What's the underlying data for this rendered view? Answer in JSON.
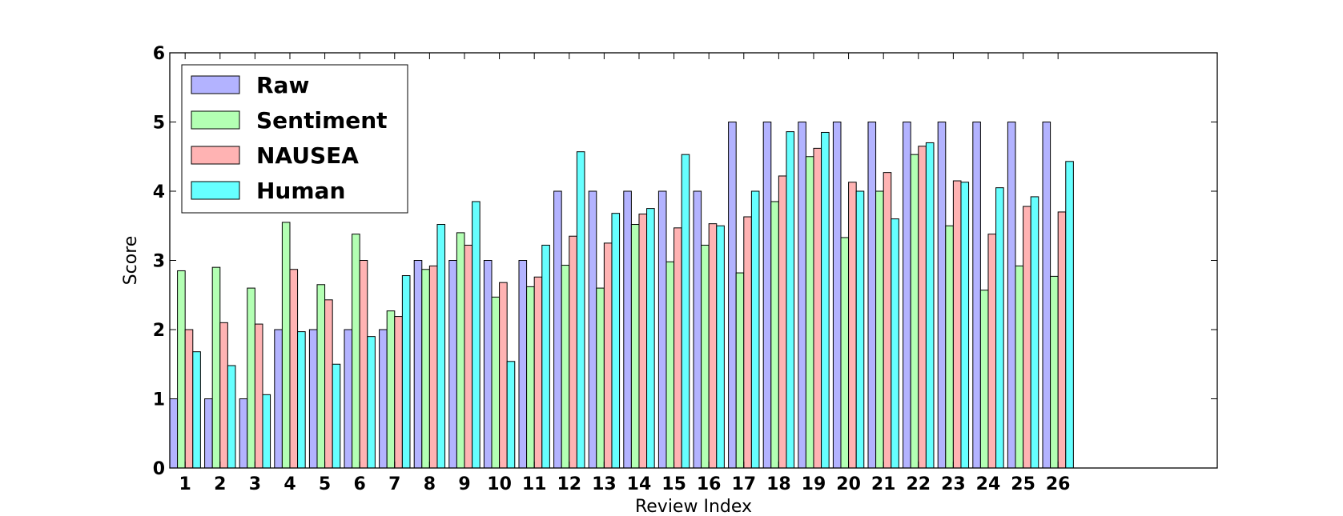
{
  "chart_data": {
    "type": "bar",
    "xlabel": "Review Index",
    "ylabel": "Score",
    "ylim": [
      0,
      6
    ],
    "yticks": [
      0,
      1,
      2,
      3,
      4,
      5,
      6
    ],
    "xlim": [
      0,
      30
    ],
    "categories": [
      "1",
      "2",
      "3",
      "4",
      "5",
      "6",
      "7",
      "8",
      "9",
      "10",
      "11",
      "12",
      "13",
      "14",
      "15",
      "16",
      "17",
      "18",
      "19",
      "20",
      "21",
      "22",
      "23",
      "24",
      "25",
      "26"
    ],
    "legend": {
      "position": "upper-left"
    },
    "series": [
      {
        "name": "Raw",
        "color": "#b3b3ff",
        "values": [
          1,
          1,
          1,
          2,
          2,
          2,
          2,
          3,
          3,
          3,
          3,
          4,
          4,
          4,
          4,
          4,
          5,
          5,
          5,
          5,
          5,
          5,
          5,
          5,
          5,
          5
        ]
      },
      {
        "name": "Sentiment",
        "color": "#b3ffb3",
        "values": [
          2.85,
          2.9,
          2.6,
          3.55,
          2.65,
          3.38,
          2.27,
          2.87,
          3.4,
          2.47,
          2.62,
          2.93,
          2.6,
          3.52,
          2.98,
          3.22,
          2.82,
          3.85,
          4.5,
          3.33,
          4.0,
          4.53,
          3.5,
          2.57,
          2.92,
          2.77
        ]
      },
      {
        "name": "NAUSEA",
        "color": "#ffb3b3",
        "values": [
          2.0,
          2.1,
          2.08,
          2.87,
          2.43,
          3.0,
          2.19,
          2.92,
          3.22,
          2.68,
          2.76,
          3.35,
          3.25,
          3.67,
          3.47,
          3.53,
          3.63,
          4.22,
          4.62,
          4.13,
          4.27,
          4.65,
          4.15,
          3.38,
          3.78,
          3.7
        ]
      },
      {
        "name": "Human",
        "color": "#66ffff",
        "values": [
          1.68,
          1.48,
          1.06,
          1.97,
          1.5,
          1.9,
          2.78,
          3.52,
          3.85,
          1.54,
          3.22,
          4.57,
          3.68,
          3.75,
          4.53,
          3.5,
          4.0,
          4.86,
          4.85,
          4.0,
          3.6,
          4.7,
          4.13,
          4.05,
          3.92,
          4.43
        ]
      }
    ]
  }
}
